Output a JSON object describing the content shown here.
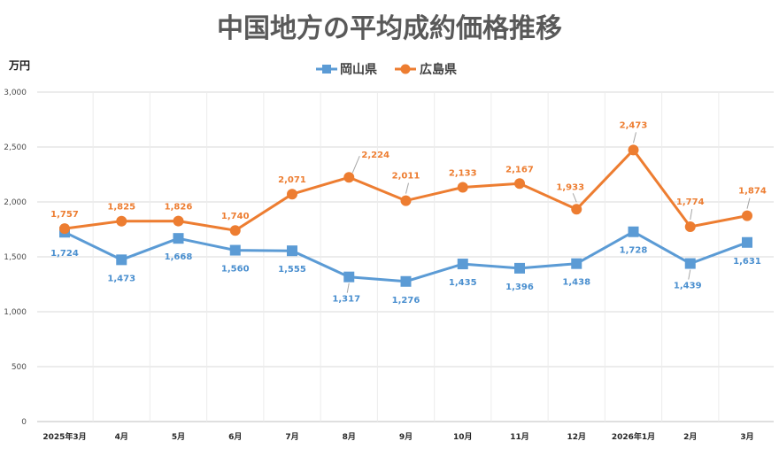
{
  "colors": {
    "okayama": "#5b9bd5",
    "hiroshima": "#ed7d31",
    "grid": "#d9d9d9"
  },
  "chart_data": {
    "type": "line",
    "title": "中国地方の平均成約価格推移",
    "ylabel": "万円",
    "xlabel": "",
    "ylim": [
      0,
      3000
    ],
    "yticks": [
      0,
      500,
      1000,
      1500,
      2000,
      2500,
      3000
    ],
    "ytick_labels": [
      "0",
      "500",
      "1,000",
      "1,500",
      "2,000",
      "2,500",
      "3,000"
    ],
    "categories": [
      "2025年3月",
      "4月",
      "5月",
      "6月",
      "7月",
      "8月",
      "9月",
      "10月",
      "11月",
      "12月",
      "2026年1月",
      "2月",
      "3月"
    ],
    "legend_position": "top",
    "series": [
      {
        "name": "岡山県",
        "marker": "square",
        "values": [
          1724,
          1473,
          1668,
          1560,
          1555,
          1317,
          1276,
          1435,
          1396,
          1438,
          1728,
          1439,
          1631
        ],
        "labels": [
          "1,724",
          "1,473",
          "1,668",
          "1,560",
          "1,555",
          "1,317",
          "1,276",
          "1,435",
          "1,396",
          "1,438",
          "1,728",
          "1,439",
          "1,631"
        ]
      },
      {
        "name": "広島県",
        "marker": "circle",
        "values": [
          1757,
          1825,
          1826,
          1740,
          2071,
          2224,
          2011,
          2133,
          2167,
          1933,
          2473,
          1774,
          1874
        ],
        "labels": [
          "1,757",
          "1,825",
          "1,826",
          "1,740",
          "2,071",
          "2,224",
          "2,011",
          "2,133",
          "2,167",
          "1,933",
          "2,473",
          "1,774",
          "1,874"
        ]
      }
    ]
  }
}
